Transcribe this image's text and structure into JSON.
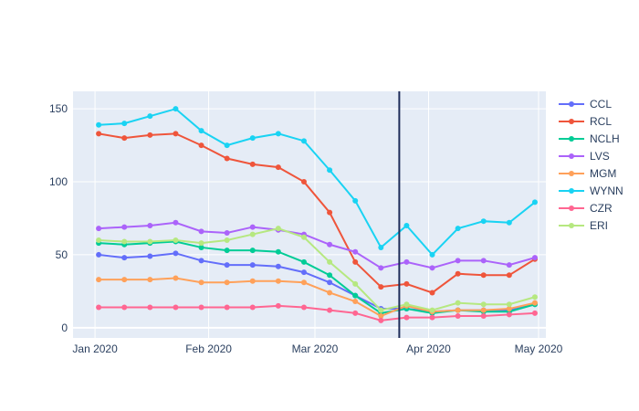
{
  "chart_data": {
    "type": "line",
    "title": "",
    "xlabel": "",
    "ylabel": "",
    "xlim": [
      "2019-12-26",
      "2020-05-03"
    ],
    "ylim": [
      -7,
      162
    ],
    "x_ticks": [
      {
        "date": "2020-01-01",
        "label": "Jan 2020"
      },
      {
        "date": "2020-02-01",
        "label": "Feb 2020"
      },
      {
        "date": "2020-03-01",
        "label": "Mar 2020"
      },
      {
        "date": "2020-04-01",
        "label": "Apr 2020"
      },
      {
        "date": "2020-05-01",
        "label": "May 2020"
      }
    ],
    "y_ticks": [
      {
        "value": 0,
        "label": "0"
      },
      {
        "value": 50,
        "label": "50"
      },
      {
        "value": 100,
        "label": "100"
      },
      {
        "value": 150,
        "label": "150"
      }
    ],
    "grid": true,
    "legend_position": "right",
    "vertical_line": {
      "date": "2020-03-24",
      "color": "#1f2d5a"
    },
    "x": [
      "2020-01-02",
      "2020-01-09",
      "2020-01-16",
      "2020-01-23",
      "2020-01-30",
      "2020-02-06",
      "2020-02-13",
      "2020-02-20",
      "2020-02-27",
      "2020-03-05",
      "2020-03-12",
      "2020-03-19",
      "2020-03-26",
      "2020-04-02",
      "2020-04-09",
      "2020-04-16",
      "2020-04-23",
      "2020-04-30"
    ],
    "series": [
      {
        "name": "CCL",
        "color": "#636efa",
        "values": [
          50,
          48,
          49,
          51,
          46,
          43,
          43,
          42,
          38,
          31,
          22,
          13,
          13,
          11,
          12,
          12,
          12,
          16
        ]
      },
      {
        "name": "RCL",
        "color": "#ef553b",
        "values": [
          133,
          130,
          132,
          133,
          125,
          116,
          112,
          110,
          100,
          79,
          45,
          28,
          30,
          24,
          37,
          36,
          36,
          47
        ]
      },
      {
        "name": "NCLH",
        "color": "#00cc96",
        "values": [
          58,
          57,
          58,
          59,
          55,
          53,
          53,
          52,
          45,
          36,
          22,
          10,
          13,
          10,
          12,
          11,
          11,
          16
        ]
      },
      {
        "name": "LVS",
        "color": "#ab63fa",
        "values": [
          68,
          69,
          70,
          72,
          66,
          65,
          69,
          67,
          64,
          57,
          52,
          41,
          45,
          41,
          46,
          46,
          43,
          48
        ]
      },
      {
        "name": "MGM",
        "color": "#ffa15a",
        "values": [
          33,
          33,
          33,
          34,
          31,
          31,
          32,
          32,
          31,
          24,
          18,
          8,
          15,
          11,
          12,
          12,
          13,
          17
        ]
      },
      {
        "name": "WYNN",
        "color": "#19d3f3",
        "values": [
          139,
          140,
          145,
          150,
          135,
          125,
          130,
          133,
          128,
          108,
          87,
          55,
          70,
          50,
          68,
          73,
          72,
          86
        ]
      },
      {
        "name": "CZR",
        "color": "#ff6692",
        "values": [
          14,
          14,
          14,
          14,
          14,
          14,
          14,
          15,
          14,
          12,
          10,
          5,
          7,
          7,
          8,
          8,
          9,
          10
        ]
      },
      {
        "name": "ERI",
        "color": "#b6e880",
        "values": [
          60,
          59,
          59,
          60,
          58,
          60,
          64,
          68,
          62,
          45,
          30,
          12,
          16,
          12,
          17,
          16,
          16,
          21
        ]
      }
    ]
  }
}
